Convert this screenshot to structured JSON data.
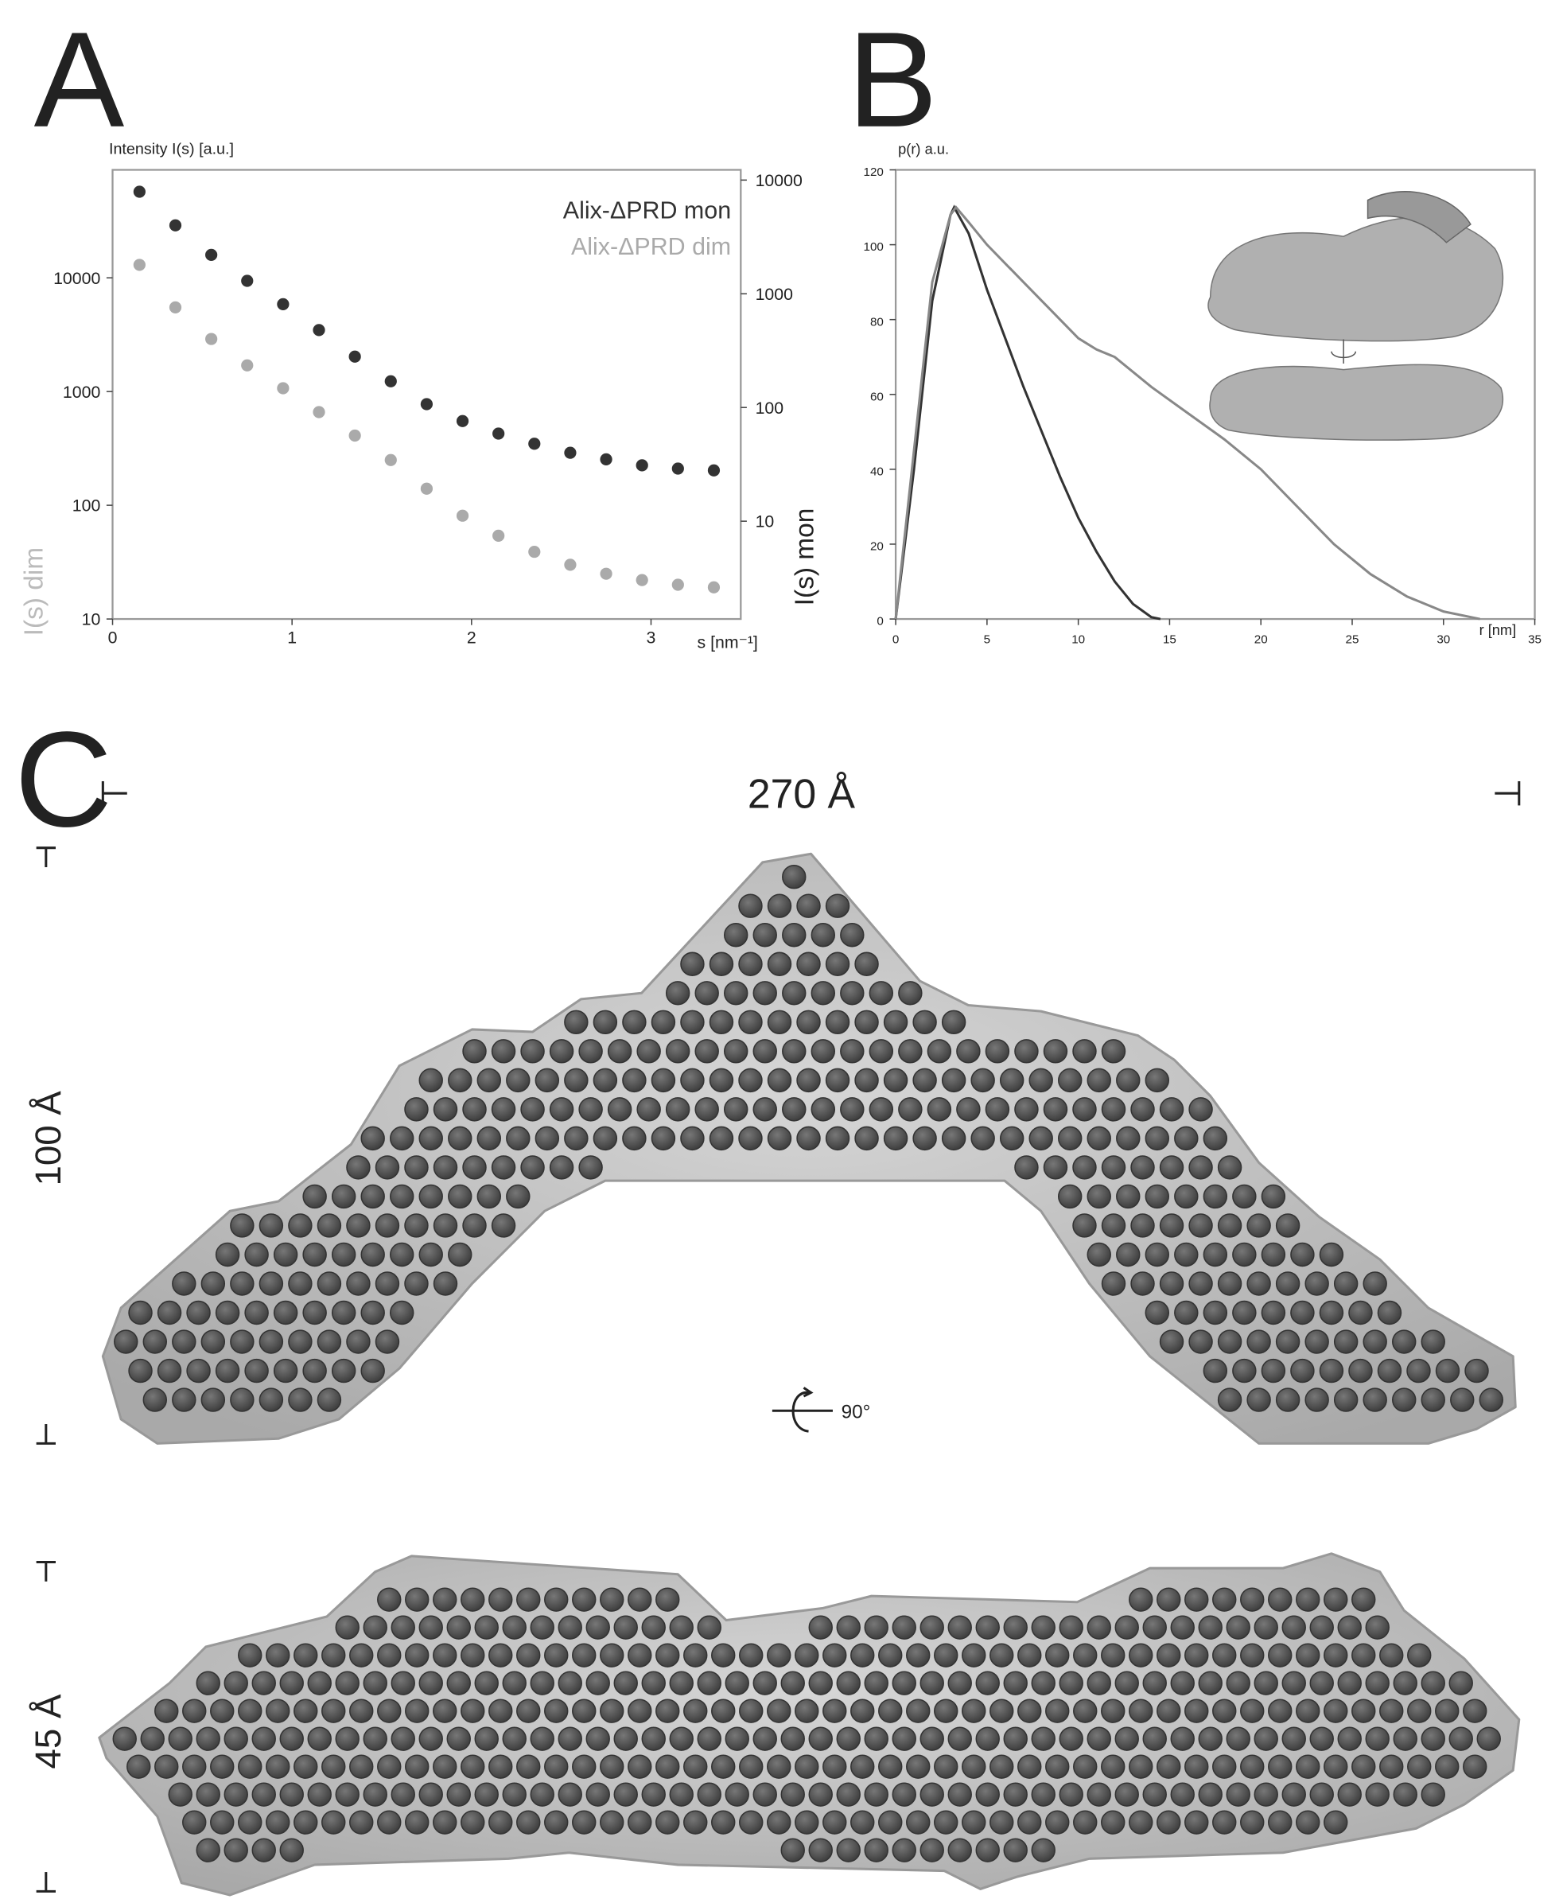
{
  "panels": {
    "a": "A",
    "b": "B",
    "c": "C"
  },
  "chart_data": [
    {
      "type": "scatter",
      "y_label_top": "Intensity I(s) [a.u.]",
      "x_label": "s [nm⁻¹]",
      "y_label": "I(s) dim",
      "y2_label": "I(s) mon",
      "x": [
        0.15,
        0.35,
        0.55,
        0.75,
        0.95,
        1.15,
        1.35,
        1.55,
        1.75,
        1.95,
        2.15,
        2.35,
        2.55,
        2.75,
        2.95,
        3.15,
        3.35
      ],
      "series": [
        {
          "name": "Alix-ΔPRD mon",
          "color": "#333333",
          "axis": "y2",
          "values": [
            7900,
            4000,
            2200,
            1300,
            810,
            480,
            280,
            170,
            107,
            76,
            59,
            48,
            40,
            35,
            31,
            29,
            28
          ]
        },
        {
          "name": "Alix-ΔPRD dim",
          "color": "#aaaaaa",
          "values": [
            13000,
            5500,
            2900,
            1700,
            1070,
            660,
            410,
            250,
            140,
            81,
            54,
            39,
            30,
            25,
            22,
            20,
            19
          ]
        }
      ],
      "xlim": [
        0,
        3.5
      ],
      "xticks": [
        0,
        1,
        2,
        3
      ],
      "ylim": [
        10,
        89000
      ],
      "yticks": [
        10,
        100,
        1000,
        10000
      ],
      "ylog": true,
      "y2lim": [
        1.38,
        12300
      ],
      "y2ticks": [
        10,
        100,
        1000,
        10000
      ],
      "y2log": true,
      "legend": "upper right"
    },
    {
      "type": "line",
      "y_label_top": "p(r) a.u.",
      "x_label": "r [nm]",
      "series": [
        {
          "color": "#333333",
          "x": [
            0,
            1,
            2,
            3,
            3.2,
            4,
            5,
            6,
            7,
            8,
            9,
            10,
            11,
            12,
            13,
            14,
            14.5
          ],
          "values": [
            0,
            40,
            85,
            108,
            110,
            103,
            88,
            75,
            62,
            50,
            38,
            27,
            18,
            10,
            4,
            0.5,
            0
          ]
        },
        {
          "color": "#888888",
          "x": [
            0,
            1,
            2,
            3,
            3.3,
            4,
            5,
            6,
            7,
            8,
            9,
            10,
            11,
            12,
            14,
            16,
            18,
            20,
            22,
            24,
            26,
            28,
            30,
            32
          ],
          "values": [
            0,
            45,
            90,
            108,
            110,
            106,
            100,
            95,
            90,
            85,
            80,
            75,
            72,
            70,
            62,
            55,
            48,
            40,
            30,
            20,
            12,
            6,
            2,
            0
          ]
        }
      ],
      "xlim": [
        0,
        35
      ],
      "xticks": [
        0,
        5,
        10,
        15,
        20,
        25,
        30,
        35
      ],
      "ylim": [
        0,
        120
      ],
      "yticks": [
        0,
        20,
        40,
        60,
        80,
        100,
        120
      ]
    }
  ],
  "diagram": {
    "width_label": "270 Å",
    "height_label": "100 Å",
    "rotation_label": "90°",
    "depth_label": "45 Å"
  }
}
